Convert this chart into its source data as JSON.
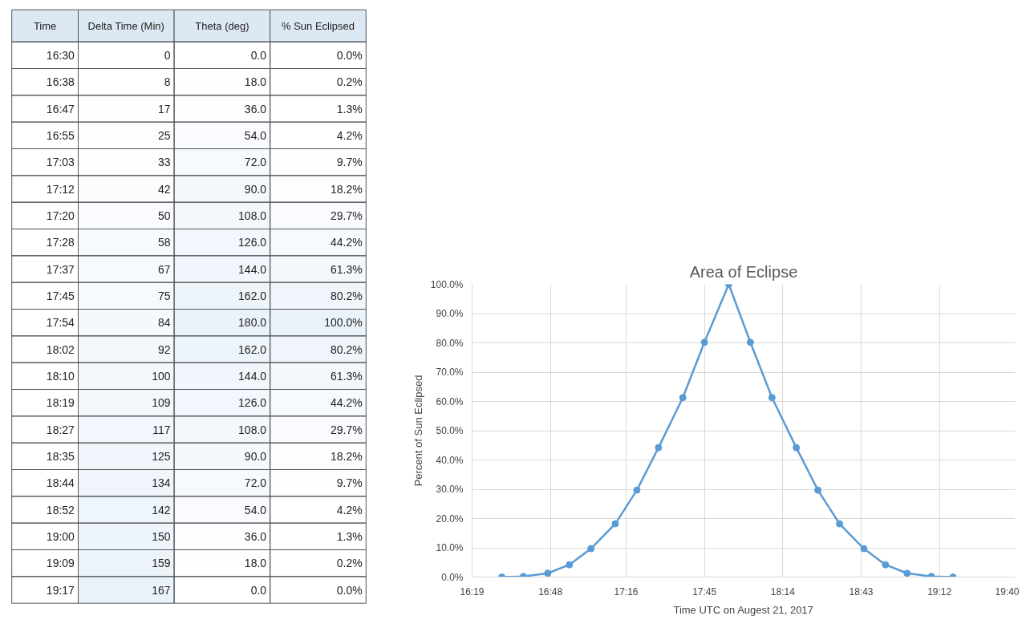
{
  "chart_data": [
    {
      "type": "heatmap",
      "ylabel": "Time",
      "categories": [
        "Delta Time (Min)",
        "Theta (deg)",
        "% Sun Eclipsed"
      ],
      "y_categories": [
        "16:30",
        "16:38",
        "16:47",
        "16:55",
        "17:03",
        "17:12",
        "17:20",
        "17:28",
        "17:37",
        "17:45",
        "17:54",
        "18:02",
        "18:10",
        "18:19",
        "18:27",
        "18:35",
        "18:44",
        "18:52",
        "19:00",
        "19:09",
        "19:17"
      ],
      "cells": [
        [
          0,
          0.0,
          0.0
        ],
        [
          8,
          18.0,
          0.2
        ],
        [
          17,
          36.0,
          1.3
        ],
        [
          25,
          54.0,
          4.2
        ],
        [
          33,
          72.0,
          9.7
        ],
        [
          42,
          90.0,
          18.2
        ],
        [
          50,
          108.0,
          29.7
        ],
        [
          58,
          126.0,
          44.2
        ],
        [
          67,
          144.0,
          61.3
        ],
        [
          75,
          162.0,
          80.2
        ],
        [
          84,
          180.0,
          100.0
        ],
        [
          92,
          162.0,
          80.2
        ],
        [
          100,
          144.0,
          61.3
        ],
        [
          109,
          126.0,
          44.2
        ],
        [
          117,
          108.0,
          29.7
        ],
        [
          125,
          90.0,
          18.2
        ],
        [
          134,
          72.0,
          9.7
        ],
        [
          142,
          54.0,
          4.2
        ],
        [
          150,
          36.0,
          1.3
        ],
        [
          159,
          18.0,
          0.2
        ],
        [
          167,
          0.0,
          0.0
        ]
      ],
      "cell_labels": [
        [
          "0",
          "0.0",
          "0.0%"
        ],
        [
          "8",
          "18.0",
          "0.2%"
        ],
        [
          "17",
          "36.0",
          "1.3%"
        ],
        [
          "25",
          "54.0",
          "4.2%"
        ],
        [
          "33",
          "72.0",
          "9.7%"
        ],
        [
          "42",
          "90.0",
          "18.2%"
        ],
        [
          "50",
          "108.0",
          "29.7%"
        ],
        [
          "58",
          "126.0",
          "44.2%"
        ],
        [
          "67",
          "144.0",
          "61.3%"
        ],
        [
          "75",
          "162.0",
          "80.2%"
        ],
        [
          "84",
          "180.0",
          "100.0%"
        ],
        [
          "92",
          "162.0",
          "80.2%"
        ],
        [
          "100",
          "144.0",
          "61.3%"
        ],
        [
          "109",
          "126.0",
          "44.2%"
        ],
        [
          "117",
          "108.0",
          "29.7%"
        ],
        [
          "125",
          "90.0",
          "18.2%"
        ],
        [
          "134",
          "72.0",
          "9.7%"
        ],
        [
          "142",
          "54.0",
          "4.2%"
        ],
        [
          "150",
          "36.0",
          "1.3%"
        ],
        [
          "159",
          "18.0",
          "0.2%"
        ],
        [
          "167",
          "0.0",
          "0.0%"
        ]
      ]
    },
    {
      "type": "line",
      "title": "Area of Eclipse",
      "xlabel": "Time UTC on Augest 21, 2017",
      "ylabel": "Percent of Sun Eclipsed",
      "x": [
        16.5,
        16.6333,
        16.7833,
        16.9167,
        17.05,
        17.2,
        17.3333,
        17.4667,
        17.6167,
        17.75,
        17.9,
        18.0333,
        18.1667,
        18.3167,
        18.45,
        18.5833,
        18.7333,
        18.8667,
        19.0,
        19.15,
        19.2833
      ],
      "series": [
        {
          "color": "#5b9bd5",
          "values": [
            0.0,
            0.2,
            1.3,
            4.2,
            9.7,
            18.2,
            29.7,
            44.2,
            61.3,
            80.2,
            100.0,
            80.2,
            61.3,
            44.2,
            29.7,
            18.2,
            9.7,
            4.2,
            1.3,
            0.2,
            0.0
          ]
        }
      ],
      "xlim": [
        16.3167,
        19.6667
      ],
      "xticks": [
        {
          "value": 16.3167,
          "label": "16:19"
        },
        {
          "value": 16.8,
          "label": "16:48"
        },
        {
          "value": 17.2667,
          "label": "17:16"
        },
        {
          "value": 17.75,
          "label": "17:45"
        },
        {
          "value": 18.2333,
          "label": "18:14"
        },
        {
          "value": 18.7167,
          "label": "18:43"
        },
        {
          "value": 19.2,
          "label": "19:12"
        },
        {
          "value": 19.6667,
          "label": "19:40"
        }
      ],
      "ylim": [
        0,
        100
      ],
      "yticks": [
        {
          "value": 0,
          "label": "0.0%"
        },
        {
          "value": 10,
          "label": "10.0%"
        },
        {
          "value": 20,
          "label": "20.0%"
        },
        {
          "value": 30,
          "label": "30.0%"
        },
        {
          "value": 40,
          "label": "40.0%"
        },
        {
          "value": 50,
          "label": "50.0%"
        },
        {
          "value": 60,
          "label": "60.0%"
        },
        {
          "value": 70,
          "label": "70.0%"
        },
        {
          "value": 80,
          "label": "80.0%"
        },
        {
          "value": 90,
          "label": "90.0%"
        },
        {
          "value": 100,
          "label": "100.0%"
        }
      ],
      "grid": true,
      "marker": "circle",
      "line_style": "solid"
    }
  ]
}
